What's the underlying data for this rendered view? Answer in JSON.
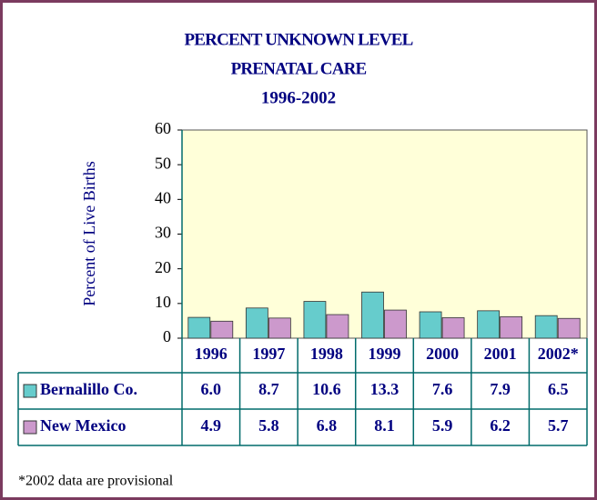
{
  "chart_data": {
    "type": "bar",
    "title": [
      "PERCENT UNKNOWN LEVEL",
      "PRENATAL CARE",
      "1996-2002"
    ],
    "y_label": "Percent of Live Births",
    "categories": [
      "1996",
      "1997",
      "1998",
      "1999",
      "2000",
      "2001",
      "2002*"
    ],
    "series": [
      {
        "name": "Bernalillo Co.",
        "color": "#66cccc",
        "values": [
          6.0,
          8.7,
          10.6,
          13.3,
          7.6,
          7.9,
          6.5
        ],
        "value_labels": [
          "6.0",
          "8.7",
          "10.6",
          "13.3",
          "7.6",
          "7.9",
          "6.5"
        ]
      },
      {
        "name": "New Mexico",
        "color": "#cc99cc",
        "values": [
          4.9,
          5.8,
          6.8,
          8.1,
          5.9,
          6.2,
          5.7
        ],
        "value_labels": [
          "4.9",
          "5.8",
          "6.8",
          "8.1",
          "5.9",
          "6.2",
          "5.7"
        ]
      }
    ],
    "ylim": [
      0,
      60
    ],
    "yticks": [
      0,
      10,
      20,
      30,
      40,
      50,
      60
    ],
    "plot_background": "#ffffd9",
    "footnote": "*2002 data are provisional"
  }
}
